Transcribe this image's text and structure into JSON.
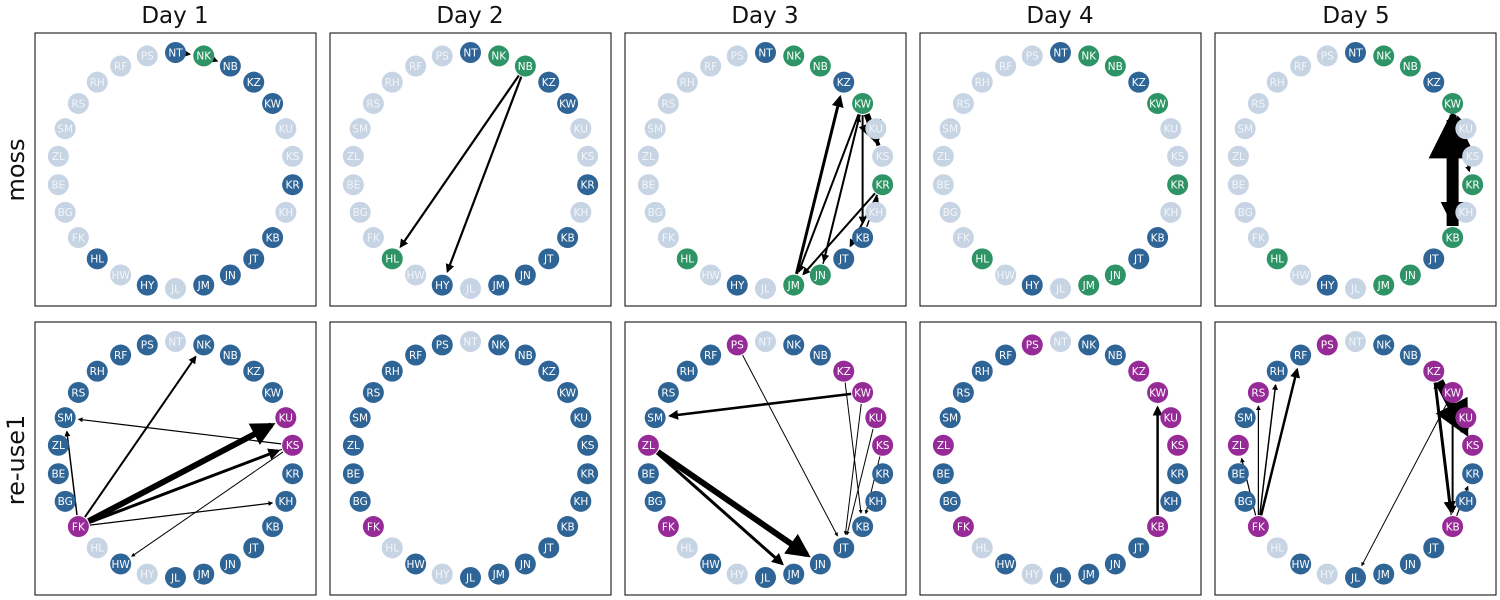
{
  "columns": [
    "Day 1",
    "Day 2",
    "Day 3",
    "Day 4",
    "Day 5"
  ],
  "rows": [
    "moss",
    "re-use1"
  ],
  "nodes": [
    "NT",
    "NK",
    "NB",
    "KZ",
    "KW",
    "KU",
    "KS",
    "KR",
    "KH",
    "KB",
    "JT",
    "JN",
    "JM",
    "JL",
    "HY",
    "HW",
    "HL",
    "FK",
    "BG",
    "BE",
    "ZL",
    "SM",
    "RS",
    "RH",
    "RF",
    "PS"
  ],
  "colors": {
    "default": "#2f6496",
    "faded": "#c7d4e4",
    "moss_highlight": "#2e9466",
    "reuse_highlight": "#962a96",
    "edge": "#000000"
  },
  "panels": [
    {
      "row": 0,
      "col": 0,
      "faded": [
        "PS",
        "RF",
        "RH",
        "RS",
        "SM",
        "ZL",
        "BE",
        "BG",
        "FK",
        "HW",
        "JL",
        "KH",
        "KS",
        "KU"
      ],
      "highlight": [
        "NK"
      ],
      "edges": [
        [
          "NT",
          "NK",
          1.5
        ],
        [
          "NK",
          "NB",
          1.5
        ]
      ]
    },
    {
      "row": 0,
      "col": 1,
      "faded": [
        "PS",
        "RF",
        "RH",
        "RS",
        "SM",
        "ZL",
        "BE",
        "BG",
        "FK",
        "HW",
        "JL",
        "KH",
        "KS",
        "KU"
      ],
      "highlight": [
        "NK",
        "NB",
        "HL"
      ],
      "edges": [
        [
          "NB",
          "HL",
          2.2
        ],
        [
          "NB",
          "HY",
          2.2
        ]
      ]
    },
    {
      "row": 0,
      "col": 2,
      "faded": [
        "PS",
        "RF",
        "RH",
        "RS",
        "SM",
        "ZL",
        "BE",
        "BG",
        "FK",
        "HW",
        "JL",
        "KH",
        "KS",
        "KU"
      ],
      "highlight": [
        "NK",
        "NB",
        "KW",
        "KR",
        "HL",
        "JN",
        "JM"
      ],
      "edges": [
        [
          "JM",
          "KZ",
          3
        ],
        [
          "KW",
          "KS",
          6
        ],
        [
          "KS",
          "KW",
          4
        ],
        [
          "KW",
          "JM",
          2
        ],
        [
          "KW",
          "JN",
          2
        ],
        [
          "KW",
          "KB",
          2
        ],
        [
          "KR",
          "JM",
          2
        ],
        [
          "KR",
          "JT",
          2
        ],
        [
          "KB",
          "KR",
          1.5
        ],
        [
          "JN",
          "KW",
          1.5
        ]
      ]
    },
    {
      "row": 0,
      "col": 3,
      "faded": [
        "PS",
        "RF",
        "RH",
        "RS",
        "SM",
        "ZL",
        "BE",
        "BG",
        "FK",
        "HW",
        "JL",
        "KH",
        "KS",
        "KU"
      ],
      "highlight": [
        "NK",
        "NB",
        "KW",
        "KR",
        "HL",
        "JN",
        "JM"
      ],
      "edges": []
    },
    {
      "row": 0,
      "col": 4,
      "faded": [
        "PS",
        "RF",
        "RH",
        "RS",
        "SM",
        "ZL",
        "BE",
        "BG",
        "FK",
        "HW",
        "JL",
        "KH",
        "KS",
        "KU"
      ],
      "highlight": [
        "NK",
        "NB",
        "KW",
        "KR",
        "KB",
        "HL",
        "JN",
        "JM"
      ],
      "edges": [
        [
          "KB",
          "KW",
          12
        ],
        [
          "KW",
          "KB",
          6
        ],
        [
          "KS",
          "KW",
          2
        ],
        [
          "KW",
          "KR",
          1.5
        ]
      ]
    },
    {
      "row": 1,
      "col": 0,
      "faded": [
        "NT",
        "HL",
        "HY"
      ],
      "highlight": [
        "KU",
        "KS",
        "FK"
      ],
      "edges": [
        [
          "FK",
          "KU",
          6
        ],
        [
          "FK",
          "KS",
          3
        ],
        [
          "FK",
          "NK",
          2
        ],
        [
          "FK",
          "SM",
          1.5
        ],
        [
          "KS",
          "SM",
          1.2
        ],
        [
          "FK",
          "KH",
          1.2
        ],
        [
          "KS",
          "HW",
          1
        ],
        [
          "KS",
          "FK",
          1
        ]
      ]
    },
    {
      "row": 1,
      "col": 1,
      "faded": [
        "NT",
        "HL",
        "HY"
      ],
      "highlight": [
        "FK"
      ],
      "edges": []
    },
    {
      "row": 1,
      "col": 2,
      "faded": [
        "NT",
        "HL",
        "HY"
      ],
      "highlight": [
        "PS",
        "KZ",
        "KW",
        "KU",
        "KS",
        "ZL",
        "FK"
      ],
      "edges": [
        [
          "KW",
          "SM",
          2.5
        ],
        [
          "ZL",
          "JN",
          6
        ],
        [
          "ZL",
          "JM",
          3
        ],
        [
          "PS",
          "JT",
          1
        ],
        [
          "KW",
          "JT",
          1
        ],
        [
          "KU",
          "JT",
          1
        ],
        [
          "KS",
          "KB",
          1
        ],
        [
          "KZ",
          "KB",
          1
        ]
      ]
    },
    {
      "row": 1,
      "col": 3,
      "faded": [
        "NT",
        "HL",
        "HY"
      ],
      "highlight": [
        "PS",
        "KZ",
        "KW",
        "KU",
        "KS",
        "ZL",
        "FK",
        "KB"
      ],
      "edges": [
        [
          "KB",
          "KW",
          2.5
        ]
      ]
    },
    {
      "row": 1,
      "col": 4,
      "faded": [
        "NT",
        "HL",
        "HY"
      ],
      "highlight": [
        "PS",
        "KZ",
        "KW",
        "KU",
        "KS",
        "ZL",
        "FK",
        "KB",
        "RS"
      ],
      "edges": [
        [
          "KZ",
          "KS",
          9
        ],
        [
          "KZ",
          "KB",
          3
        ],
        [
          "FK",
          "RF",
          2.5
        ],
        [
          "FK",
          "RH",
          1.5
        ],
        [
          "FK",
          "RS",
          1.2
        ],
        [
          "FK",
          "ZL",
          1.2
        ],
        [
          "KW",
          "JL",
          1
        ],
        [
          "KB",
          "KR",
          1.2
        ],
        [
          "KB",
          "KZ",
          1.2
        ],
        [
          "KW",
          "KB",
          2
        ]
      ]
    }
  ]
}
